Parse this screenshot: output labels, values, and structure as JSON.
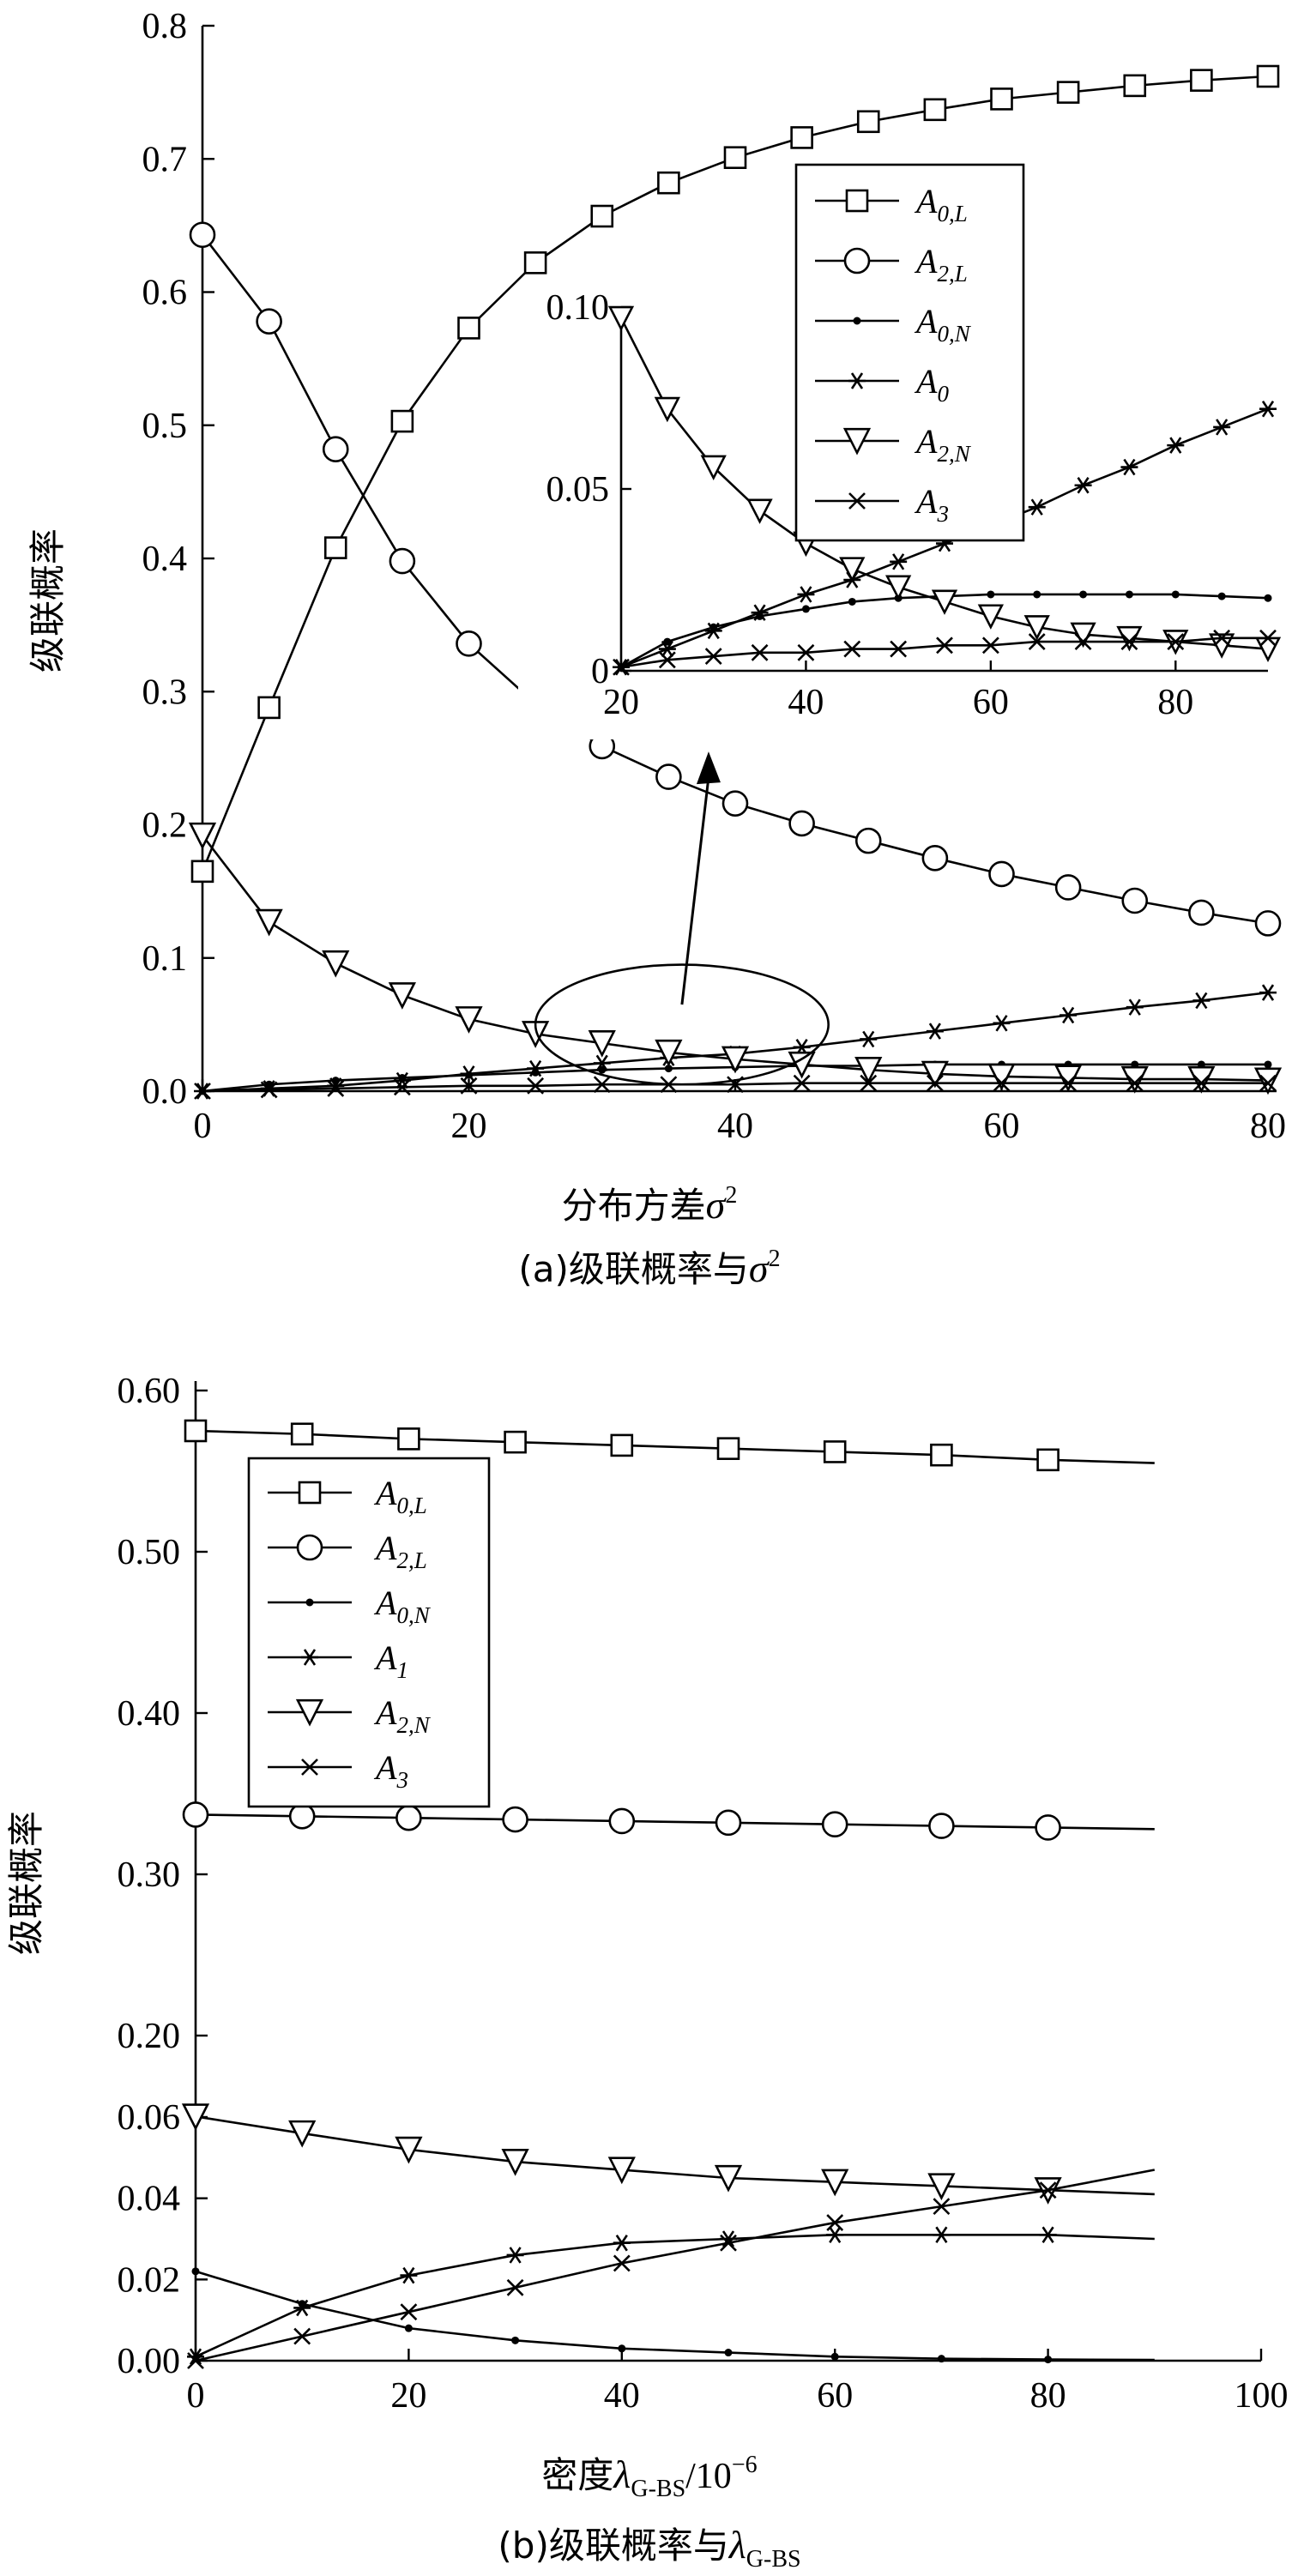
{
  "chart_data": [
    {
      "id": "a",
      "type": "line",
      "caption": "(a)级联概率与σ²",
      "xlabel": "分布方差σ²",
      "ylabel": "级联概率",
      "xlim": [
        0,
        80
      ],
      "ylim": [
        0,
        0.8
      ],
      "xticks": [
        0,
        20,
        40,
        60,
        80
      ],
      "yticks": [
        0.0,
        0.1,
        0.2,
        0.3,
        0.4,
        0.5,
        0.6,
        0.7,
        0.8
      ],
      "ytick_labels": [
        "0.0",
        "0.1",
        "0.2",
        "0.3",
        "0.4",
        "0.5",
        "0.6",
        "0.7",
        "0.8"
      ],
      "legend_position": "inside inset, top-right",
      "series": [
        {
          "name": "A0,L",
          "marker": "square",
          "x": [
            0,
            5,
            10,
            15,
            20,
            25,
            30,
            35,
            40,
            45,
            50,
            55,
            60,
            65,
            70,
            75,
            80
          ],
          "values": [
            0.165,
            0.288,
            0.408,
            0.503,
            0.573,
            0.622,
            0.657,
            0.682,
            0.701,
            0.716,
            0.728,
            0.737,
            0.745,
            0.75,
            0.755,
            0.759,
            0.762
          ]
        },
        {
          "name": "A2,L",
          "marker": "circle",
          "x": [
            0,
            5,
            10,
            15,
            20,
            25,
            30,
            35,
            40,
            45,
            50,
            55,
            60,
            65,
            70,
            75,
            80
          ],
          "values": [
            0.643,
            0.578,
            0.482,
            0.398,
            0.336,
            0.291,
            0.259,
            0.236,
            0.216,
            0.201,
            0.188,
            0.175,
            0.163,
            0.153,
            0.143,
            0.134,
            0.126
          ]
        },
        {
          "name": "A0,N",
          "marker": "dot",
          "x": [
            0,
            5,
            10,
            15,
            20,
            25,
            30,
            35,
            40,
            45,
            50,
            55,
            60,
            65,
            70,
            75,
            80
          ],
          "values": [
            0.0,
            0.005,
            0.008,
            0.01,
            0.012,
            0.014,
            0.016,
            0.017,
            0.018,
            0.019,
            0.019,
            0.02,
            0.02,
            0.02,
            0.02,
            0.02,
            0.02
          ]
        },
        {
          "name": "A0",
          "marker": "star",
          "x": [
            0,
            5,
            10,
            15,
            20,
            25,
            30,
            35,
            40,
            45,
            50,
            55,
            60,
            65,
            70,
            75,
            80
          ],
          "values": [
            0.0,
            0.002,
            0.004,
            0.008,
            0.013,
            0.017,
            0.021,
            0.025,
            0.028,
            0.033,
            0.039,
            0.045,
            0.051,
            0.057,
            0.063,
            0.068,
            0.074
          ]
        },
        {
          "name": "A2,N",
          "marker": "triangle-down",
          "x": [
            0,
            5,
            10,
            15,
            20,
            25,
            30,
            35,
            40,
            45,
            50,
            55,
            60,
            65,
            70,
            75,
            80
          ],
          "values": [
            0.192,
            0.127,
            0.096,
            0.072,
            0.054,
            0.043,
            0.036,
            0.029,
            0.024,
            0.02,
            0.016,
            0.013,
            0.011,
            0.01,
            0.009,
            0.009,
            0.008
          ]
        },
        {
          "name": "A3",
          "marker": "x",
          "x": [
            0,
            5,
            10,
            15,
            20,
            25,
            30,
            35,
            40,
            45,
            50,
            55,
            60,
            65,
            70,
            75,
            80
          ],
          "values": [
            0.0,
            0.001,
            0.002,
            0.003,
            0.004,
            0.004,
            0.005,
            0.005,
            0.005,
            0.006,
            0.006,
            0.006,
            0.006,
            0.006,
            0.006,
            0.006,
            0.006
          ]
        }
      ],
      "ellipse_annotation": {
        "center": [
          36,
          0.05
        ],
        "rx": 11,
        "ry": 0.045
      },
      "arrow_annotation": {
        "from": [
          36,
          0.065
        ],
        "to": [
          38,
          0.255
        ]
      },
      "inset": {
        "xlim": [
          20,
          90
        ],
        "ylim": [
          0,
          0.1
        ],
        "xticks": [
          20,
          40,
          60,
          80
        ],
        "yticks": [
          0,
          0.05,
          0.1
        ],
        "ytick_labels": [
          "0",
          "0.05",
          "0.10"
        ],
        "series": [
          {
            "name": "A0,N",
            "marker": "dot",
            "x": [
              20,
              25,
              30,
              35,
              40,
              45,
              50,
              55,
              60,
              65,
              70,
              75,
              80,
              85,
              90
            ],
            "values": [
              0.001,
              0.008,
              0.012,
              0.015,
              0.017,
              0.019,
              0.02,
              0.0205,
              0.021,
              0.021,
              0.021,
              0.021,
              0.021,
              0.0205,
              0.02
            ]
          },
          {
            "name": "A0",
            "marker": "star",
            "x": [
              20,
              25,
              30,
              35,
              40,
              45,
              50,
              55,
              60,
              65,
              70,
              75,
              80,
              85,
              90
            ],
            "values": [
              0.001,
              0.006,
              0.011,
              0.016,
              0.021,
              0.025,
              0.03,
              0.035,
              0.04,
              0.045,
              0.051,
              0.056,
              0.062,
              0.067,
              0.072
            ]
          },
          {
            "name": "A2,N",
            "marker": "triangle-down",
            "x": [
              20,
              25,
              30,
              35,
              40,
              45,
              50,
              55,
              60,
              65,
              70,
              75,
              80,
              85,
              90
            ],
            "values": [
              0.097,
              0.072,
              0.056,
              0.044,
              0.035,
              0.028,
              0.023,
              0.019,
              0.015,
              0.012,
              0.01,
              0.009,
              0.008,
              0.007,
              0.006
            ]
          },
          {
            "name": "A3",
            "marker": "x",
            "x": [
              20,
              25,
              30,
              35,
              40,
              45,
              50,
              55,
              60,
              65,
              70,
              75,
              80,
              85,
              90
            ],
            "values": [
              0.001,
              0.003,
              0.004,
              0.005,
              0.005,
              0.006,
              0.006,
              0.007,
              0.007,
              0.008,
              0.008,
              0.008,
              0.008,
              0.009,
              0.009
            ]
          }
        ]
      }
    },
    {
      "id": "b",
      "type": "line",
      "caption": "(b)级联概率与λG-BS",
      "xlabel": "密度λG-BS/10⁻⁶",
      "ylabel": "级联概率",
      "xlim": [
        0,
        100
      ],
      "y_broken_axis": "0.00–0.06 expanded, 0.20–0.60 compressed",
      "xticks": [
        0,
        20,
        40,
        60,
        80,
        100
      ],
      "yticks": [
        0.0,
        0.02,
        0.04,
        0.06,
        0.2,
        0.3,
        0.4,
        0.5,
        0.6
      ],
      "ytick_labels": [
        "0.00",
        "0.02",
        "0.04",
        "0.06",
        "0.20",
        "0.30",
        "0.40",
        "0.50",
        "0.60"
      ],
      "legend_position": "top-left",
      "series": [
        {
          "name": "A0,L",
          "marker": "square",
          "x": [
            0,
            10,
            20,
            30,
            40,
            50,
            60,
            70,
            80,
            90
          ],
          "values": [
            0.575,
            0.573,
            0.57,
            0.568,
            0.566,
            0.564,
            0.562,
            0.56,
            0.557,
            0.555
          ]
        },
        {
          "name": "A2,L",
          "marker": "circle",
          "x": [
            0,
            10,
            20,
            30,
            40,
            50,
            60,
            70,
            80,
            90
          ],
          "values": [
            0.337,
            0.336,
            0.335,
            0.334,
            0.333,
            0.332,
            0.331,
            0.33,
            0.329,
            0.328
          ]
        },
        {
          "name": "A0,N",
          "marker": "dot",
          "x": [
            0,
            10,
            20,
            30,
            40,
            50,
            60,
            70,
            80,
            90
          ],
          "values": [
            0.022,
            0.014,
            0.008,
            0.005,
            0.003,
            0.002,
            0.001,
            0.0005,
            0.0003,
            0.0002
          ]
        },
        {
          "name": "A1",
          "marker": "star",
          "x": [
            0,
            10,
            20,
            30,
            40,
            50,
            60,
            70,
            80,
            90
          ],
          "values": [
            0.001,
            0.013,
            0.021,
            0.026,
            0.029,
            0.03,
            0.031,
            0.031,
            0.031,
            0.03
          ]
        },
        {
          "name": "A2,N",
          "marker": "triangle-down",
          "x": [
            0,
            10,
            20,
            30,
            40,
            50,
            60,
            70,
            80,
            90
          ],
          "values": [
            0.061,
            0.056,
            0.052,
            0.049,
            0.047,
            0.045,
            0.044,
            0.043,
            0.042,
            0.041
          ]
        },
        {
          "name": "A3",
          "marker": "x",
          "x": [
            0,
            10,
            20,
            30,
            40,
            50,
            60,
            70,
            80,
            90
          ],
          "values": [
            0.0,
            0.006,
            0.012,
            0.018,
            0.024,
            0.029,
            0.034,
            0.038,
            0.042,
            0.047
          ]
        }
      ]
    }
  ],
  "labels": {
    "a_xlabel_text": "分布方差",
    "a_xlabel_var": "σ",
    "a_xlabel_sup": "2",
    "a_caption_text": "(a)级联概率与",
    "a_caption_var": "σ",
    "a_caption_sup": "2",
    "ylabel": "级联概率",
    "b_xlabel_text": "密度",
    "b_xlabel_var": "λ",
    "b_xlabel_sub": "G-BS",
    "b_xlabel_unit": "/10",
    "b_xlabel_exp": "−6",
    "b_caption_text": "(b)级联概率与",
    "b_caption_var": "λ",
    "b_caption_sub": "G-BS"
  },
  "legend_a": [
    {
      "base": "A",
      "sub": "0,L"
    },
    {
      "base": "A",
      "sub": "2,L"
    },
    {
      "base": "A",
      "sub": "0,N"
    },
    {
      "base": "A",
      "sub": "0"
    },
    {
      "base": "A",
      "sub": "2,N"
    },
    {
      "base": "A",
      "sub": "3"
    }
  ],
  "legend_b": [
    {
      "base": "A",
      "sub": "0,L"
    },
    {
      "base": "A",
      "sub": "2,L"
    },
    {
      "base": "A",
      "sub": "0,N"
    },
    {
      "base": "A",
      "sub": "1"
    },
    {
      "base": "A",
      "sub": "2,N"
    },
    {
      "base": "A",
      "sub": "3"
    }
  ]
}
